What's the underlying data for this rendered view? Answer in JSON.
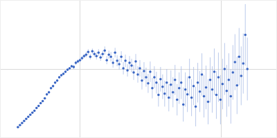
{
  "chart_data": {
    "type": "scatter",
    "x": [
      25,
      28,
      31,
      34,
      37,
      40,
      43,
      46,
      49,
      52,
      55,
      58,
      61,
      64,
      67,
      70,
      73,
      76,
      79,
      82,
      85,
      88,
      91,
      94,
      97,
      100,
      103,
      106,
      109,
      112,
      115,
      118,
      121,
      124,
      127,
      130,
      133,
      136,
      139,
      142,
      145,
      148,
      151,
      154,
      157,
      160,
      163,
      166,
      169,
      172,
      175,
      178,
      181,
      184,
      187,
      190,
      193,
      196,
      199,
      202,
      205,
      208,
      211,
      214,
      217,
      220,
      223,
      226,
      229,
      232,
      235,
      238,
      241,
      244,
      247,
      250,
      253,
      256,
      259,
      262,
      265,
      268,
      271,
      274,
      277,
      280,
      283,
      286,
      289,
      292,
      295,
      298,
      301,
      304,
      307,
      310,
      313,
      316,
      319,
      322,
      325,
      328,
      331,
      334,
      337,
      340,
      343,
      346,
      349,
      352,
      355,
      358
    ],
    "values": [
      15,
      18,
      21,
      24,
      27,
      30,
      33,
      36,
      39,
      43,
      46,
      50,
      53,
      57,
      63,
      66,
      72,
      75,
      80,
      83,
      88,
      91,
      93,
      96,
      99,
      101,
      104,
      103,
      109,
      111,
      113,
      116,
      119,
      121,
      125,
      118,
      126,
      122,
      119,
      124,
      117,
      122,
      127,
      113,
      121,
      118,
      109,
      124,
      112,
      107,
      118,
      101,
      112,
      98,
      109,
      105,
      95,
      111,
      92,
      101,
      83,
      97,
      88,
      79,
      96,
      72,
      88,
      80,
      62,
      85,
      74,
      64,
      80,
      58,
      77,
      66,
      84,
      55,
      72,
      80,
      48,
      70,
      63,
      88,
      58,
      75,
      45,
      80,
      67,
      92,
      60,
      73,
      52,
      84,
      70,
      96,
      62,
      88,
      55,
      78,
      100,
      68,
      84,
      60,
      95,
      110,
      76,
      118,
      90,
      108,
      150,
      100
    ],
    "errors": [
      1,
      1,
      1,
      1,
      1,
      1,
      1,
      1,
      1,
      1,
      1,
      1,
      1,
      1,
      2,
      2,
      2,
      2,
      2,
      2,
      2,
      2,
      2,
      2,
      2,
      2,
      2,
      3,
      3,
      3,
      3,
      3,
      3,
      4,
      4,
      4,
      4,
      4,
      5,
      5,
      5,
      5,
      6,
      6,
      6,
      7,
      7,
      7,
      8,
      8,
      8,
      9,
      9,
      9,
      10,
      10,
      11,
      11,
      12,
      12,
      13,
      13,
      14,
      14,
      15,
      15,
      16,
      16,
      17,
      18,
      18,
      19,
      20,
      20,
      21,
      22,
      22,
      23,
      23,
      24,
      25,
      25,
      26,
      27,
      27,
      28,
      29,
      29,
      30,
      31,
      31,
      32,
      33,
      33,
      34,
      34,
      35,
      36,
      36,
      37,
      38,
      38,
      39,
      40,
      40,
      41,
      42,
      42,
      43,
      44,
      45,
      46
    ],
    "xlim": [
      0,
      400
    ],
    "ylim": [
      0,
      200
    ],
    "xticks": [
      115,
      320
    ],
    "yticks": [
      100
    ],
    "grid": true,
    "tick_labels": false,
    "color": "#3a66c4",
    "marker": "circle"
  }
}
